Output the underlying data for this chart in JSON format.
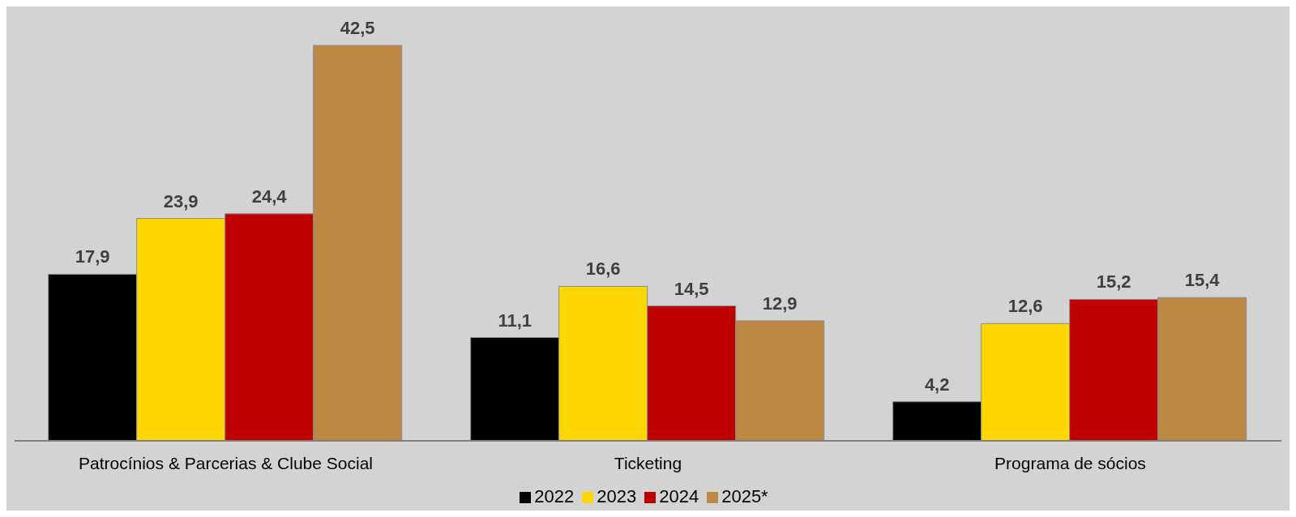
{
  "chart_data": {
    "type": "bar",
    "categories": [
      "Patrocínios & Parcerias & Clube Social",
      "Ticketing",
      "Programa de sócios"
    ],
    "series": [
      {
        "name": "2022",
        "color": "#000000",
        "values": [
          17.9,
          11.1,
          4.2
        ],
        "value_labels": [
          "17,9",
          "11,1",
          "4,2"
        ]
      },
      {
        "name": "2023",
        "color": "#ffd700",
        "values": [
          23.9,
          16.6,
          12.6
        ],
        "value_labels": [
          "23,9",
          "16,6",
          "12,6"
        ]
      },
      {
        "name": "2024",
        "color": "#c00000",
        "values": [
          24.4,
          14.5,
          15.2
        ],
        "value_labels": [
          "24,4",
          "14,5",
          "15,2"
        ]
      },
      {
        "name": "2025*",
        "color": "#bc8844",
        "values": [
          42.5,
          12.9,
          15.4
        ],
        "value_labels": [
          "42,5",
          "12,9",
          "15,4"
        ]
      }
    ],
    "grid": false,
    "legend": "bottom"
  }
}
